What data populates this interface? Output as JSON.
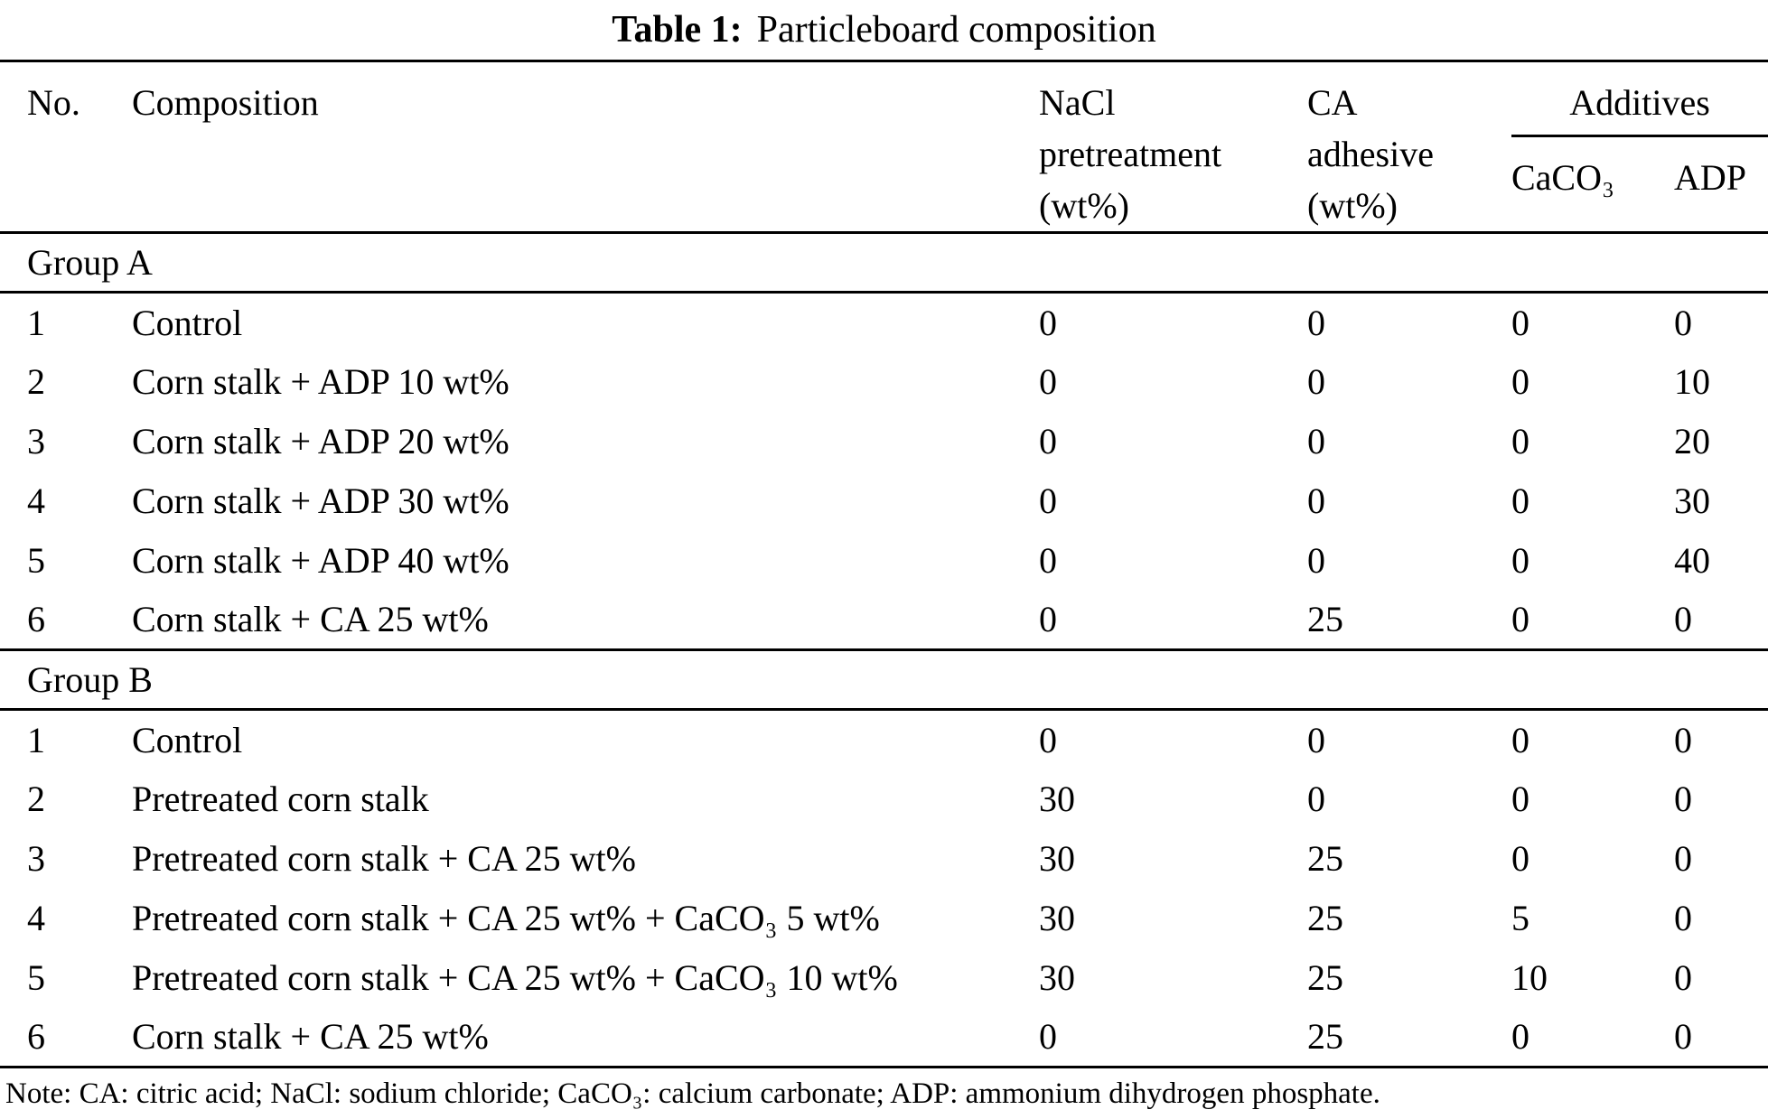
{
  "page": {
    "background_color": "#ffffff",
    "text_color": "#000000",
    "rule_color": "#000000"
  },
  "title": {
    "label": "Table 1:",
    "text": "Particleboard composition"
  },
  "table": {
    "headers": {
      "no": "No.",
      "composition": "Composition",
      "nacl_pretreatment": "NaCl\npretreatment\n(wt%)",
      "ca_adhesive": "CA\nadhesive\n(wt%)",
      "additives": "Additives",
      "caco3": "CaCO₃",
      "adp": "ADP"
    },
    "groups": [
      {
        "label": "Group A",
        "rows": [
          {
            "no": "1",
            "composition": "Control",
            "nacl": "0",
            "ca": "0",
            "caco3": "0",
            "adp": "0"
          },
          {
            "no": "2",
            "composition": "Corn stalk + ADP 10 wt%",
            "nacl": "0",
            "ca": "0",
            "caco3": "0",
            "adp": "10"
          },
          {
            "no": "3",
            "composition": "Corn stalk + ADP 20 wt%",
            "nacl": "0",
            "ca": "0",
            "caco3": "0",
            "adp": "20"
          },
          {
            "no": "4",
            "composition": "Corn stalk + ADP 30 wt%",
            "nacl": "0",
            "ca": "0",
            "caco3": "0",
            "adp": "30"
          },
          {
            "no": "5",
            "composition": "Corn stalk + ADP 40 wt%",
            "nacl": "0",
            "ca": "0",
            "caco3": "0",
            "adp": "40"
          },
          {
            "no": "6",
            "composition": "Corn stalk + CA 25 wt%",
            "nacl": "0",
            "ca": "25",
            "caco3": "0",
            "adp": "0"
          }
        ]
      },
      {
        "label": "Group B",
        "rows": [
          {
            "no": "1",
            "composition": "Control",
            "nacl": "0",
            "ca": "0",
            "caco3": "0",
            "adp": "0"
          },
          {
            "no": "2",
            "composition": "Pretreated corn stalk",
            "nacl": "30",
            "ca": "0",
            "caco3": "0",
            "adp": "0"
          },
          {
            "no": "3",
            "composition": "Pretreated corn stalk + CA 25 wt%",
            "nacl": "30",
            "ca": "25",
            "caco3": "0",
            "adp": "0"
          },
          {
            "no": "4",
            "composition": "Pretreated corn stalk + CA 25 wt% + CaCO₃ 5 wt%",
            "nacl": "30",
            "ca": "25",
            "caco3": "5",
            "adp": "0"
          },
          {
            "no": "5",
            "composition": "Pretreated corn stalk + CA 25 wt% + CaCO₃ 10 wt%",
            "nacl": "30",
            "ca": "25",
            "caco3": "10",
            "adp": "0"
          },
          {
            "no": "6",
            "composition": "Corn stalk + CA 25 wt%",
            "nacl": "0",
            "ca": "25",
            "caco3": "0",
            "adp": "0"
          }
        ]
      }
    ]
  },
  "note": "Note: CA: citric acid; NaCl: sodium chloride; CaCO₃: calcium carbonate; ADP: ammonium dihydrogen phosphate."
}
